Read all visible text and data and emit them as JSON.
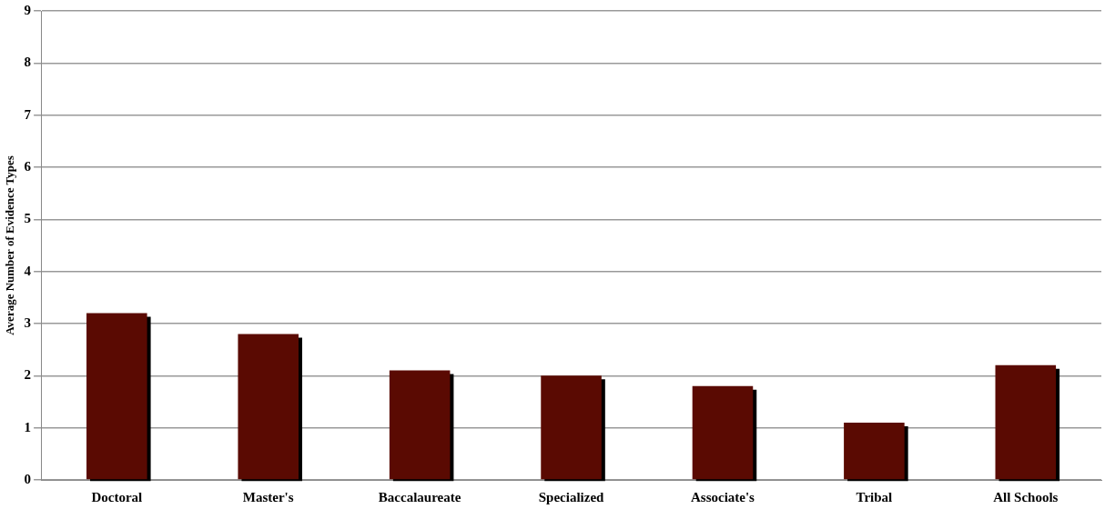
{
  "chart_data": {
    "type": "bar",
    "ylabel": "Average Number of Evidence Types",
    "categories": [
      "Doctoral",
      "Master's",
      "Baccalaureate",
      "Specialized",
      "Associate's",
      "Tribal",
      "All Schools"
    ],
    "values": [
      3.2,
      2.8,
      2.1,
      2.0,
      1.8,
      1.1,
      2.2
    ],
    "color": "#5a0a02",
    "ylim": [
      0,
      9
    ],
    "yticks": [
      0,
      1,
      2,
      3,
      4,
      5,
      6,
      7,
      8,
      9
    ],
    "grid": "y"
  }
}
